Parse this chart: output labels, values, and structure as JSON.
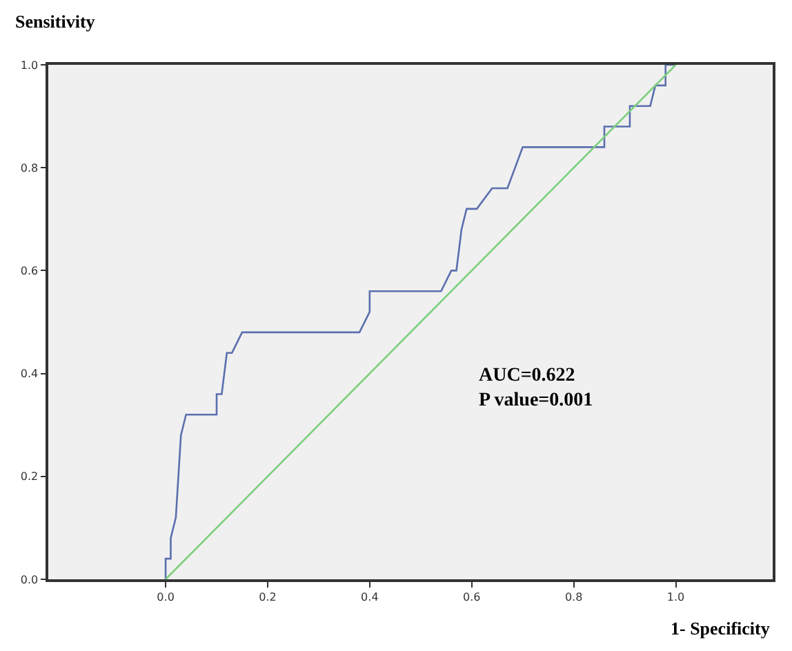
{
  "chart_data": {
    "type": "line",
    "ylabel": "Sensitivity",
    "xlabel": "1- Specificity",
    "annotations": [
      "AUC=0.622\nP value=0.001"
    ],
    "xlim": [
      -0.23,
      1.19
    ],
    "ylim": [
      0,
      1
    ],
    "xticks": [
      {
        "value": 0,
        "label": "0.0"
      },
      {
        "value": 0.2,
        "label": "0.2"
      },
      {
        "value": 0.4,
        "label": "0.4"
      },
      {
        "value": 0.6,
        "label": "0.6"
      },
      {
        "value": 0.8,
        "label": "0.8"
      },
      {
        "value": 1,
        "label": "1.0"
      }
    ],
    "yticks": [
      {
        "value": 0,
        "label": "0.0"
      },
      {
        "value": 0.2,
        "label": "0.2"
      },
      {
        "value": 0.4,
        "label": "0.4"
      },
      {
        "value": 0.6,
        "label": "0.6"
      },
      {
        "value": 0.8,
        "label": "0.8"
      },
      {
        "value": 1,
        "label": "1.0"
      }
    ],
    "grid": false,
    "series": [
      {
        "color": "#5a6fae",
        "x": [
          0,
          0,
          0.01,
          0.01,
          0.02,
          0.025,
          0.03,
          0.04,
          0.1,
          0.1,
          0.11,
          0.12,
          0.13,
          0.15,
          0.38,
          0.4,
          0.4,
          0.54,
          0.56,
          0.57,
          0.58,
          0.59,
          0.61,
          0.64,
          0.67,
          0.7,
          0.86,
          0.86,
          0.91,
          0.91,
          0.95,
          0.96,
          0.98,
          0.98,
          1.0
        ],
        "values": [
          0,
          0.04,
          0.04,
          0.08,
          0.12,
          0.2,
          0.28,
          0.32,
          0.32,
          0.36,
          0.36,
          0.44,
          0.44,
          0.48,
          0.48,
          0.52,
          0.56,
          0.56,
          0.6,
          0.6,
          0.68,
          0.72,
          0.72,
          0.76,
          0.76,
          0.84,
          0.84,
          0.88,
          0.88,
          0.92,
          0.92,
          0.96,
          0.96,
          1.0,
          1.0
        ]
      },
      {
        "color": "#7ccf7c",
        "x": [
          0,
          1
        ],
        "values": [
          0,
          1
        ]
      }
    ]
  }
}
